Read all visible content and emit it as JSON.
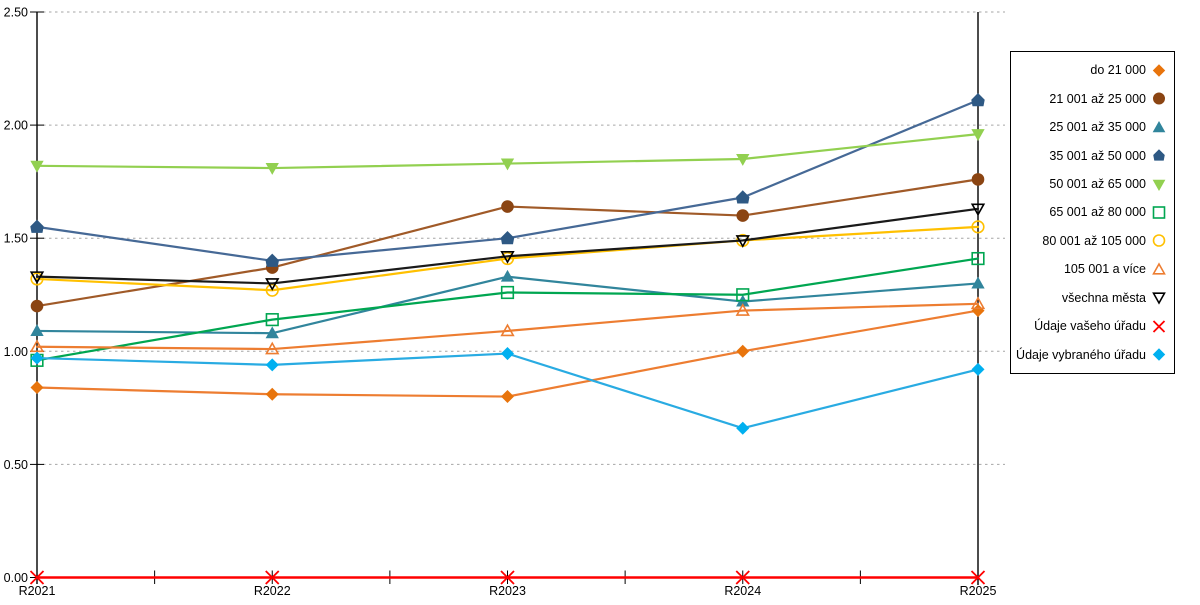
{
  "page": {
    "background": "#FFFFFF"
  },
  "chart_data": {
    "type": "line",
    "title": "",
    "xlabel": "",
    "ylabel": "",
    "x_categories": [
      "R2021",
      "R2022",
      "R2023",
      "R2024",
      "R2025"
    ],
    "ylim": [
      0,
      2.5
    ],
    "ytick_step": 0.5,
    "ytick_labels": [
      "0.00",
      "0.50",
      "1.00",
      "1.50",
      "2.00",
      "2.50"
    ],
    "grid": "horizontal-dashed",
    "grid_color": "#A6A6A6",
    "axis_color": "#000000",
    "legend_position": "right",
    "reference_line": {
      "x_category": "R2025",
      "color": "#000000"
    },
    "series": [
      {
        "name": "do 21 000",
        "marker": "diamond",
        "marker_style": "filled",
        "color": "#E8740C",
        "line_color": "#ED7D31",
        "values": [
          0.84,
          0.81,
          0.8,
          1.0,
          1.18
        ]
      },
      {
        "name": "21 001 až 25 000",
        "marker": "circle",
        "marker_style": "filled",
        "color": "#8B4513",
        "line_color": "#A05A28",
        "values": [
          1.2,
          1.37,
          1.64,
          1.6,
          1.76
        ]
      },
      {
        "name": "25 001 až 35 000",
        "marker": "triangle-up",
        "marker_style": "filled",
        "color": "#31859C",
        "line_color": "#31859C",
        "values": [
          1.09,
          1.08,
          1.33,
          1.22,
          1.3
        ]
      },
      {
        "name": "35 001 až 50 000",
        "marker": "pentagon",
        "marker_style": "filled",
        "color": "#2E5984",
        "line_color": "#466996",
        "values": [
          1.55,
          1.4,
          1.5,
          1.68,
          2.11
        ]
      },
      {
        "name": "50 001 až 65 000",
        "marker": "triangle-down",
        "marker_style": "filled",
        "color": "#92D050",
        "line_color": "#92D050",
        "values": [
          1.82,
          1.81,
          1.83,
          1.85,
          1.96
        ]
      },
      {
        "name": "65 001 až 80 000",
        "marker": "square",
        "marker_style": "open",
        "color": "#00A651",
        "line_color": "#00A651",
        "values": [
          0.96,
          1.14,
          1.26,
          1.25,
          1.41
        ]
      },
      {
        "name": "80 001 až 105 000",
        "marker": "circle",
        "marker_style": "open",
        "color": "#FFC000",
        "line_color": "#FFC000",
        "values": [
          1.32,
          1.27,
          1.41,
          1.49,
          1.55
        ]
      },
      {
        "name": "105 001 a více",
        "marker": "triangle-up",
        "marker_style": "open",
        "color": "#ED7D31",
        "line_color": "#ED7D31",
        "values": [
          1.02,
          1.01,
          1.09,
          1.18,
          1.21
        ]
      },
      {
        "name": "všechna města",
        "marker": "triangle-down",
        "marker_style": "open",
        "color": "#000000",
        "line_color": "#1A1A1A",
        "values": [
          1.33,
          1.3,
          1.42,
          1.49,
          1.63
        ]
      },
      {
        "name": "Údaje vašeho úřadu",
        "marker": "x",
        "marker_style": "open",
        "color": "#FF0000",
        "line_color": "#FF0000",
        "values": [
          0.0,
          0.0,
          0.0,
          0.0,
          0.0
        ]
      },
      {
        "name": "Údaje vybraného úřadu",
        "marker": "diamond",
        "marker_style": "filled",
        "color": "#00B0F0",
        "line_color": "#29ABE2",
        "values": [
          0.97,
          0.94,
          0.99,
          0.66,
          0.92
        ]
      }
    ]
  }
}
